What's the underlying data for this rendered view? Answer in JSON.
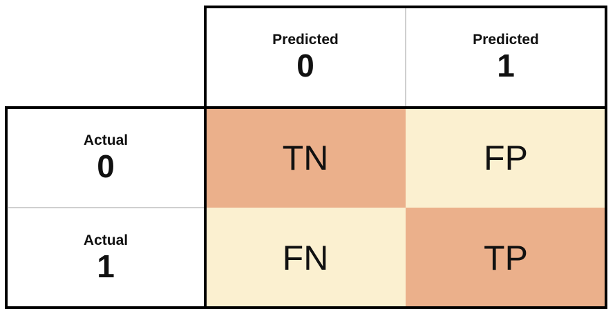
{
  "matrix": {
    "columns": [
      {
        "label": "Predicted",
        "value": "0"
      },
      {
        "label": "Predicted",
        "value": "1"
      }
    ],
    "rows": [
      {
        "label": "Actual",
        "value": "0"
      },
      {
        "label": "Actual",
        "value": "1"
      }
    ],
    "cells": {
      "tn": {
        "text": "TN",
        "color": "#ebb08b"
      },
      "fp": {
        "text": "FP",
        "color": "#fbf0d0"
      },
      "fn": {
        "text": "FN",
        "color": "#fbf0d0"
      },
      "tp": {
        "text": "TP",
        "color": "#ebb08b"
      }
    }
  },
  "colors": {
    "border": "#000000",
    "inner_divider": "#cfcfcf",
    "header_background": "#ffffff"
  }
}
